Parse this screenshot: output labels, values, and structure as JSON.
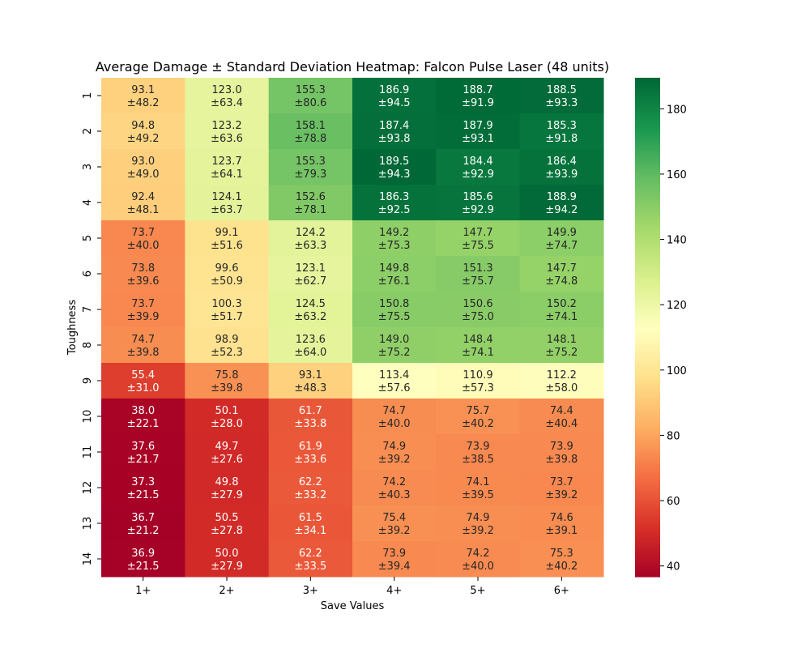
{
  "chart_data": {
    "type": "heatmap",
    "title": "Average Damage ± Standard Deviation Heatmap: Falcon Pulse Laser (48 units)",
    "xlabel": "Save Values",
    "ylabel": "Toughness",
    "x_categories": [
      "1+",
      "2+",
      "3+",
      "4+",
      "5+",
      "6+"
    ],
    "y_categories": [
      "1",
      "2",
      "3",
      "4",
      "5",
      "6",
      "7",
      "8",
      "9",
      "10",
      "11",
      "12",
      "13",
      "14"
    ],
    "values": [
      [
        93.1,
        123.0,
        155.3,
        186.9,
        188.7,
        188.5
      ],
      [
        94.8,
        123.2,
        158.1,
        187.4,
        187.9,
        185.3
      ],
      [
        93.0,
        123.7,
        155.3,
        189.5,
        184.4,
        186.4
      ],
      [
        92.4,
        124.1,
        152.6,
        186.3,
        185.6,
        188.9
      ],
      [
        73.7,
        99.1,
        124.2,
        149.2,
        147.7,
        149.9
      ],
      [
        73.8,
        99.6,
        123.1,
        149.8,
        151.3,
        147.7
      ],
      [
        73.7,
        100.3,
        124.5,
        150.8,
        150.6,
        150.2
      ],
      [
        74.7,
        98.9,
        123.6,
        149.0,
        148.4,
        148.1
      ],
      [
        55.4,
        75.8,
        93.1,
        113.4,
        110.9,
        112.2
      ],
      [
        38.0,
        50.1,
        61.7,
        74.7,
        75.7,
        74.4
      ],
      [
        37.6,
        49.7,
        61.9,
        74.9,
        73.9,
        73.9
      ],
      [
        37.3,
        49.8,
        62.2,
        74.2,
        74.1,
        73.7
      ],
      [
        36.7,
        50.5,
        61.5,
        75.4,
        74.9,
        74.6
      ],
      [
        36.9,
        50.0,
        62.2,
        73.9,
        74.2,
        75.3
      ]
    ],
    "std": [
      [
        48.2,
        63.4,
        80.6,
        94.5,
        91.9,
        93.3
      ],
      [
        49.2,
        63.6,
        78.8,
        93.8,
        93.1,
        91.8
      ],
      [
        49.0,
        64.1,
        79.3,
        94.3,
        92.9,
        93.9
      ],
      [
        48.1,
        63.7,
        78.1,
        92.5,
        92.9,
        94.2
      ],
      [
        40.0,
        51.6,
        63.3,
        75.3,
        75.5,
        74.7
      ],
      [
        39.6,
        50.9,
        62.7,
        76.1,
        75.7,
        74.8
      ],
      [
        39.9,
        51.7,
        63.2,
        75.5,
        75.0,
        74.1
      ],
      [
        39.8,
        52.3,
        64.0,
        75.2,
        74.1,
        75.2
      ],
      [
        31.0,
        39.8,
        48.3,
        57.6,
        57.3,
        58.0
      ],
      [
        22.1,
        28.0,
        33.8,
        40.0,
        40.2,
        40.4
      ],
      [
        21.7,
        27.6,
        33.6,
        39.2,
        38.5,
        39.8
      ],
      [
        21.5,
        27.9,
        33.2,
        40.3,
        39.5,
        39.2
      ],
      [
        21.2,
        27.8,
        34.1,
        39.2,
        39.2,
        39.1
      ],
      [
        21.5,
        27.9,
        33.5,
        39.4,
        40.0,
        40.2
      ]
    ],
    "colormap": "RdYlGn",
    "color_range": [
      36.7,
      189.5
    ],
    "colorbar_ticks": [
      40,
      60,
      80,
      100,
      120,
      140,
      160,
      180
    ],
    "grid": false,
    "legend": "colorbar-right"
  }
}
